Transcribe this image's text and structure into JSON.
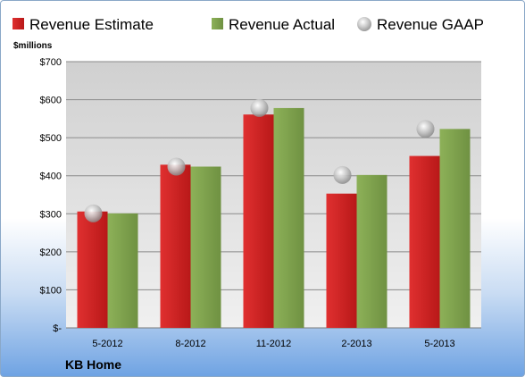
{
  "chart_data": {
    "type": "bar",
    "categories": [
      "5-2012",
      "8-2012",
      "11-2012",
      "2-2013",
      "5-2013"
    ],
    "series": [
      {
        "name": "Revenue Estimate",
        "mark": "bar",
        "color": "#cc1f1f",
        "values": [
          306,
          429,
          561,
          353,
          452
        ]
      },
      {
        "name": "Revenue Actual",
        "mark": "bar",
        "color": "#7ea04d",
        "values": [
          301,
          424,
          578,
          402,
          523
        ]
      },
      {
        "name": "Revenue GAAP",
        "mark": "marker",
        "color": "#b8b8b8",
        "values": [
          301,
          424,
          578,
          402,
          523
        ]
      }
    ],
    "ylabel": "$millions",
    "ylim": [
      0,
      700
    ],
    "yticks": [
      0,
      100,
      200,
      300,
      400,
      500,
      600,
      700
    ],
    "ytick_labels": [
      "$-",
      "$100",
      "$200",
      "$300",
      "$400",
      "$500",
      "$600",
      "$700"
    ],
    "grid": true,
    "legend_position": "top"
  },
  "company": "KB Home",
  "colors": {
    "plot_background": "#d4d4d4",
    "gridline": "#8a8a8a"
  }
}
